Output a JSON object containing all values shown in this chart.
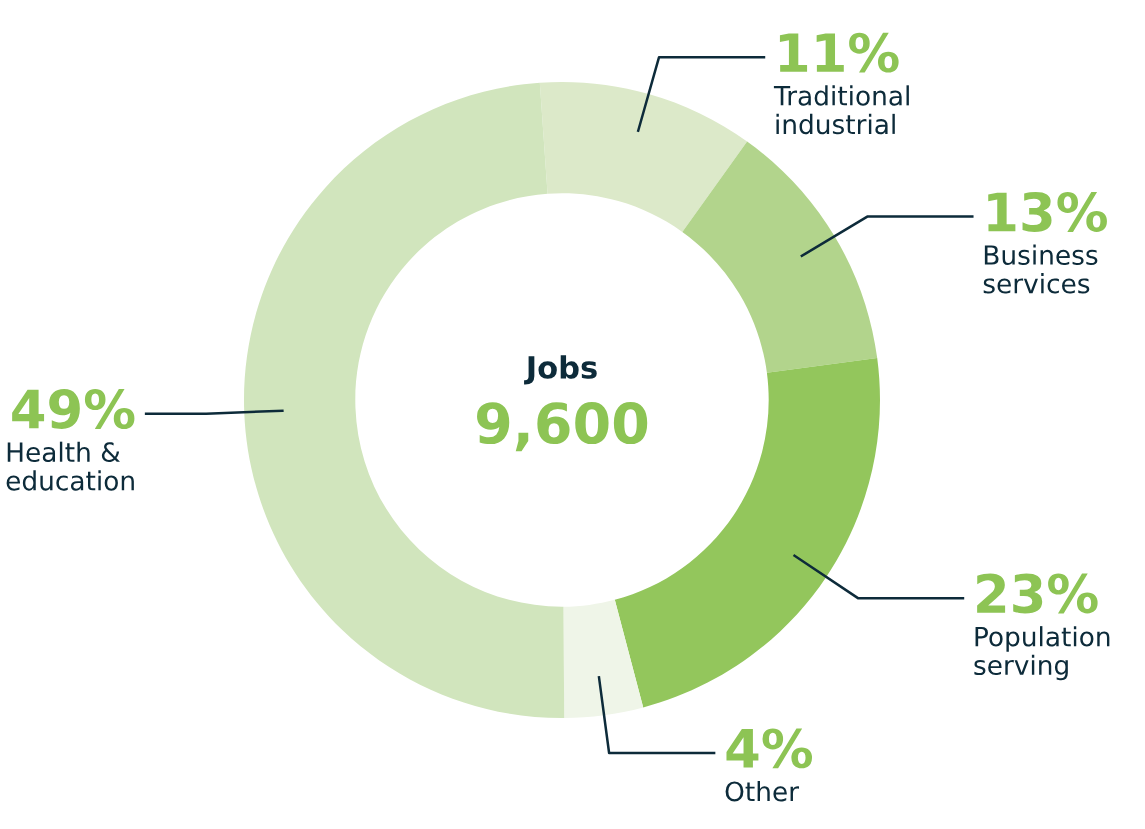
{
  "chart_data": {
    "type": "donut",
    "title": "Jobs",
    "subtitle": "9,600",
    "categories": [
      "Traditional industrial",
      "Business services",
      "Population serving",
      "Other",
      "Health & education"
    ],
    "values": [
      11,
      13,
      23,
      4,
      49
    ],
    "colors": [
      "#dce9c9",
      "#b2d48c",
      "#93c65c",
      "#eff5e8",
      "#d1e5bd"
    ],
    "value_labels": [
      "11%",
      "13%",
      "23%",
      "4%",
      "49%"
    ],
    "legend": false
  }
}
